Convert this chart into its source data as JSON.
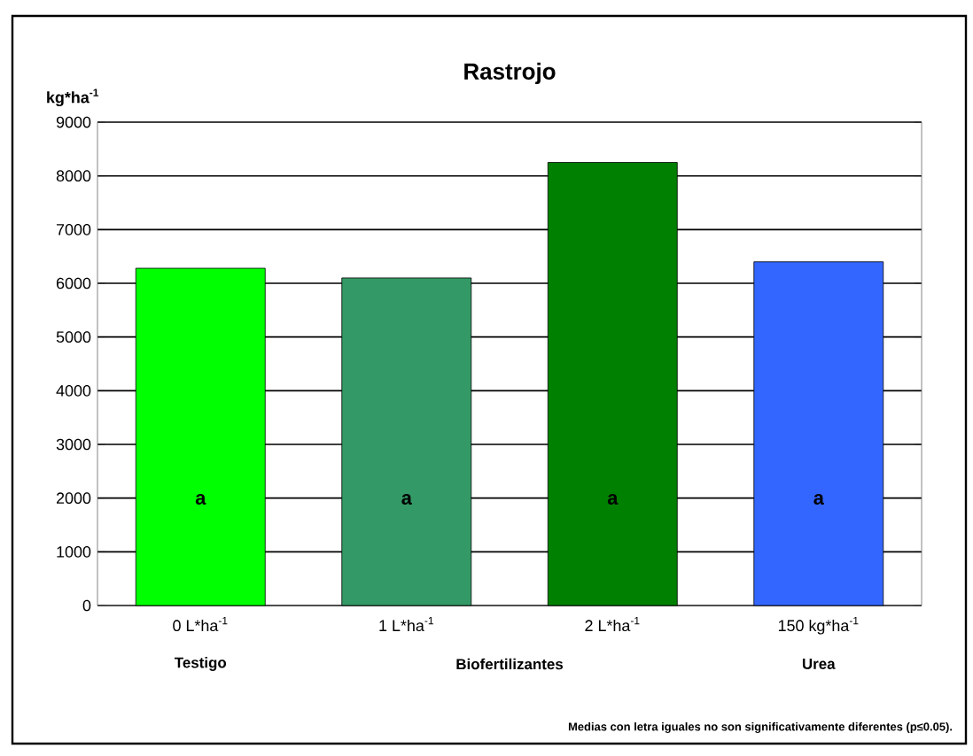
{
  "chart_data": {
    "type": "bar",
    "title": "Rastrojo",
    "ylabel": "kg*ha$^{-1}$",
    "categories": [
      "0 L*ha$^{-1}$",
      "1 L*ha$^{-1}$",
      "2 L*ha$^{-1}$",
      "150 kg*ha$^{-1}$"
    ],
    "values": [
      6280,
      6100,
      8250,
      6400
    ],
    "colors": [
      "#00ff00",
      "#339966",
      "#008000",
      "#3366ff"
    ],
    "ylim": [
      0,
      9000
    ],
    "yticks": [
      0,
      1000,
      2000,
      3000,
      4000,
      5000,
      6000,
      7000,
      8000,
      9000
    ],
    "grid": "y",
    "annotations": [
      "a",
      "a",
      "a",
      "a",
      "Testigo",
      "Biofertilizantes",
      "Urea",
      "Medias con letra iguales no son significativamente diferentes (p≤0.05)."
    ]
  }
}
